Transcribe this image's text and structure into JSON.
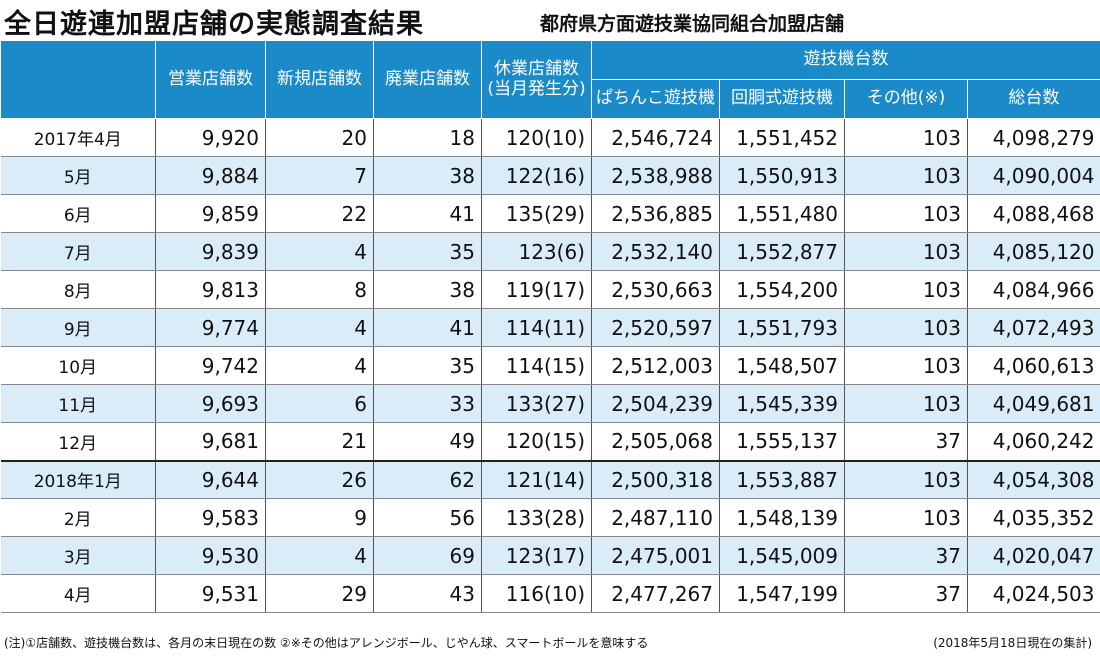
{
  "title": "全日遊連加盟店舗の実態調査結果",
  "subtitle": "都府県方面遊技業協同組合加盟店舗",
  "headers": {
    "eigyo": "営業店舗数",
    "shinki": "新規店舗数",
    "haigyo": "廃業店舗数",
    "kyugyo_line1": "休業店舗数",
    "kyugyo_line2": "(当月発生分)",
    "yugiki_group": "遊技機台数",
    "pachinko": "ぱちんこ遊技機",
    "kaido": "回胴式遊技機",
    "sonota": "その他(※)",
    "sodaisu": "総台数"
  },
  "rows": [
    {
      "month": "2017年4月",
      "eigyo": "9,920",
      "shinki": "20",
      "haigyo": "18",
      "kyugyo": "120(10)",
      "pachinko": "2,546,724",
      "kaido": "1,551,452",
      "sonota": "103",
      "sodaisu": "4,098,279"
    },
    {
      "month": "5月",
      "eigyo": "9,884",
      "shinki": "7",
      "haigyo": "38",
      "kyugyo": "122(16)",
      "pachinko": "2,538,988",
      "kaido": "1,550,913",
      "sonota": "103",
      "sodaisu": "4,090,004"
    },
    {
      "month": "6月",
      "eigyo": "9,859",
      "shinki": "22",
      "haigyo": "41",
      "kyugyo": "135(29)",
      "pachinko": "2,536,885",
      "kaido": "1,551,480",
      "sonota": "103",
      "sodaisu": "4,088,468"
    },
    {
      "month": "7月",
      "eigyo": "9,839",
      "shinki": "4",
      "haigyo": "35",
      "kyugyo": "123(6)",
      "pachinko": "2,532,140",
      "kaido": "1,552,877",
      "sonota": "103",
      "sodaisu": "4,085,120"
    },
    {
      "month": "8月",
      "eigyo": "9,813",
      "shinki": "8",
      "haigyo": "38",
      "kyugyo": "119(17)",
      "pachinko": "2,530,663",
      "kaido": "1,554,200",
      "sonota": "103",
      "sodaisu": "4,084,966"
    },
    {
      "month": "9月",
      "eigyo": "9,774",
      "shinki": "4",
      "haigyo": "41",
      "kyugyo": "114(11)",
      "pachinko": "2,520,597",
      "kaido": "1,551,793",
      "sonota": "103",
      "sodaisu": "4,072,493"
    },
    {
      "month": "10月",
      "eigyo": "9,742",
      "shinki": "4",
      "haigyo": "35",
      "kyugyo": "114(15)",
      "pachinko": "2,512,003",
      "kaido": "1,548,507",
      "sonota": "103",
      "sodaisu": "4,060,613"
    },
    {
      "month": "11月",
      "eigyo": "9,693",
      "shinki": "6",
      "haigyo": "33",
      "kyugyo": "133(27)",
      "pachinko": "2,504,239",
      "kaido": "1,545,339",
      "sonota": "103",
      "sodaisu": "4,049,681"
    },
    {
      "month": "12月",
      "eigyo": "9,681",
      "shinki": "21",
      "haigyo": "49",
      "kyugyo": "120(15)",
      "pachinko": "2,505,068",
      "kaido": "1,555,137",
      "sonota": "37",
      "sodaisu": "4,060,242"
    },
    {
      "month": "2018年1月",
      "eigyo": "9,644",
      "shinki": "26",
      "haigyo": "62",
      "kyugyo": "121(14)",
      "pachinko": "2,500,318",
      "kaido": "1,553,887",
      "sonota": "103",
      "sodaisu": "4,054,308"
    },
    {
      "month": "2月",
      "eigyo": "9,583",
      "shinki": "9",
      "haigyo": "56",
      "kyugyo": "133(28)",
      "pachinko": "2,487,110",
      "kaido": "1,548,139",
      "sonota": "103",
      "sodaisu": "4,035,352"
    },
    {
      "month": "3月",
      "eigyo": "9,530",
      "shinki": "4",
      "haigyo": "69",
      "kyugyo": "123(17)",
      "pachinko": "2,475,001",
      "kaido": "1,545,009",
      "sonota": "37",
      "sodaisu": "4,020,047"
    },
    {
      "month": "4月",
      "eigyo": "9,531",
      "shinki": "29",
      "haigyo": "43",
      "kyugyo": "116(10)",
      "pachinko": "2,477,267",
      "kaido": "1,547,199",
      "sonota": "37",
      "sodaisu": "4,024,503"
    }
  ],
  "footnote": "(注)①店舗数、遊技機台数は、各月の末日現在の数 ②※その他はアレンジボール、じやん球、スマートボールを意味する",
  "footnote_right": "(2018年5月18日現在の集計)",
  "colors": {
    "header_bg": "#1a8ac9",
    "alt_row_bg": "#d9ecf7"
  }
}
